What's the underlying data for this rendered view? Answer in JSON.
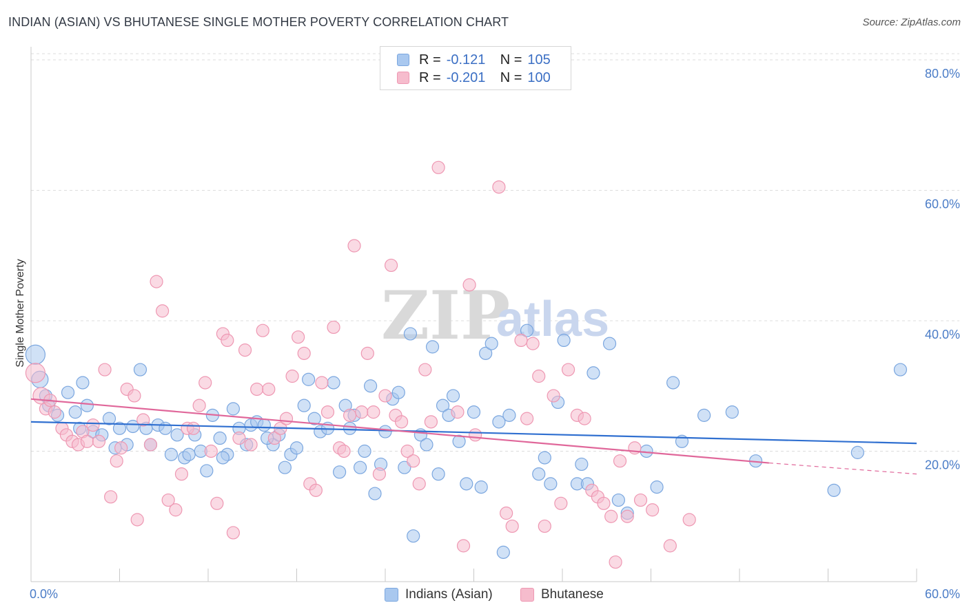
{
  "title": "INDIAN (ASIAN) VS BHUTANESE SINGLE MOTHER POVERTY CORRELATION CHART",
  "source": "Source: ZipAtlas.com",
  "watermark": {
    "zip": "ZIP",
    "atlas": "atlas"
  },
  "colors": {
    "blue_fill": "#a9c8ef",
    "blue_stroke": "#7aa6df",
    "blue_line": "#2f6fd0",
    "pink_fill": "#f6bccd",
    "pink_stroke": "#ee97b2",
    "pink_line": "#e0679a",
    "tick_text": "#4a7cc7",
    "grid": "#dcdcdc"
  },
  "legend_top": {
    "rows": [
      {
        "r_label": "R =",
        "r_value": "-0.121",
        "n_label": "N =",
        "n_value": "105"
      },
      {
        "r_label": "R =",
        "r_value": "-0.201",
        "n_label": "N =",
        "n_value": "100"
      }
    ]
  },
  "legend_bottom": {
    "series1": "Indians (Asian)",
    "series2": "Bhutanese"
  },
  "chart_data": {
    "type": "scatter",
    "title": "INDIAN (ASIAN) VS BHUTANESE SINGLE MOTHER POVERTY CORRELATION CHART",
    "xlabel": "",
    "ylabel": "Single Mother Poverty",
    "xlim": [
      0,
      60
    ],
    "ylim": [
      0,
      82
    ],
    "x_tick_labels": [
      {
        "value": 0,
        "label": "0.0%"
      },
      {
        "value": 60,
        "label": "60.0%"
      }
    ],
    "y_tick_labels": [
      {
        "value": 20,
        "label": "20.0%"
      },
      {
        "value": 40,
        "label": "40.0%"
      },
      {
        "value": 60,
        "label": "60.0%"
      },
      {
        "value": 80,
        "label": "80.0%"
      }
    ],
    "series": [
      {
        "name": "Indians (Asian)",
        "R": -0.121,
        "N": 105,
        "trend": {
          "x0": 0,
          "y0": 24.5,
          "x1": 60,
          "y1": 21.2
        },
        "points": [
          [
            0.3,
            34.8
          ],
          [
            0.6,
            31
          ],
          [
            1,
            28.5
          ],
          [
            1.2,
            27
          ],
          [
            1.8,
            25.5
          ],
          [
            2.5,
            29
          ],
          [
            3,
            26
          ],
          [
            3.3,
            23.5
          ],
          [
            3.8,
            27
          ],
          [
            4.2,
            23
          ],
          [
            4.8,
            22.5
          ],
          [
            5.3,
            25
          ],
          [
            5.7,
            20.5
          ],
          [
            6,
            23.5
          ],
          [
            6.5,
            21
          ],
          [
            6.9,
            23.8
          ],
          [
            7.4,
            32.5
          ],
          [
            7.8,
            23.5
          ],
          [
            8.1,
            21
          ],
          [
            8.6,
            24
          ],
          [
            9.1,
            23.5
          ],
          [
            9.5,
            19.5
          ],
          [
            9.9,
            22.5
          ],
          [
            10.4,
            19
          ],
          [
            10.7,
            19.5
          ],
          [
            11.1,
            22.5
          ],
          [
            11.5,
            20
          ],
          [
            11.9,
            17
          ],
          [
            12.3,
            25.5
          ],
          [
            12.8,
            22
          ],
          [
            13.3,
            19.5
          ],
          [
            13.7,
            26.5
          ],
          [
            14.1,
            23.5
          ],
          [
            14.6,
            21
          ],
          [
            14.9,
            24
          ],
          [
            15.3,
            24.5
          ],
          [
            15.8,
            24
          ],
          [
            16.4,
            21
          ],
          [
            16.8,
            22.5
          ],
          [
            17.2,
            17.5
          ],
          [
            17.6,
            19.5
          ],
          [
            18,
            20.5
          ],
          [
            18.5,
            27
          ],
          [
            18.8,
            31
          ],
          [
            19.2,
            25
          ],
          [
            19.6,
            23
          ],
          [
            20.1,
            23.5
          ],
          [
            20.5,
            30.5
          ],
          [
            20.9,
            16.8
          ],
          [
            21.3,
            27
          ],
          [
            21.6,
            23.5
          ],
          [
            21.9,
            25.5
          ],
          [
            22.3,
            17.5
          ],
          [
            22.6,
            20
          ],
          [
            23,
            30
          ],
          [
            23.3,
            13.5
          ],
          [
            23.7,
            18
          ],
          [
            24,
            23
          ],
          [
            24.5,
            28
          ],
          [
            24.9,
            29
          ],
          [
            25.3,
            17.5
          ],
          [
            25.7,
            38
          ],
          [
            25.9,
            7
          ],
          [
            26.4,
            22.5
          ],
          [
            26.8,
            21
          ],
          [
            27.2,
            36
          ],
          [
            27.6,
            16.5
          ],
          [
            27.9,
            27
          ],
          [
            28.3,
            25.5
          ],
          [
            28.6,
            28.5
          ],
          [
            29,
            21.5
          ],
          [
            29.5,
            15
          ],
          [
            30,
            26
          ],
          [
            30.5,
            14.5
          ],
          [
            30.8,
            35
          ],
          [
            31.2,
            36.5
          ],
          [
            31.7,
            24.5
          ],
          [
            32,
            4.5
          ],
          [
            32.4,
            25.5
          ],
          [
            33.6,
            38.5
          ],
          [
            34.4,
            16.5
          ],
          [
            34.8,
            19
          ],
          [
            35.2,
            15
          ],
          [
            35.7,
            27.5
          ],
          [
            36.1,
            37
          ],
          [
            37,
            15
          ],
          [
            37.3,
            18
          ],
          [
            37.7,
            15
          ],
          [
            38.1,
            32
          ],
          [
            39.2,
            36.5
          ],
          [
            39.8,
            12.5
          ],
          [
            40.4,
            10.5
          ],
          [
            41.7,
            20
          ],
          [
            42.4,
            14.5
          ],
          [
            43.5,
            30.5
          ],
          [
            44.1,
            21.5
          ],
          [
            45.6,
            25.5
          ],
          [
            47.5,
            26
          ],
          [
            49.1,
            18.5
          ],
          [
            54.4,
            14
          ],
          [
            56,
            19.8
          ],
          [
            58.9,
            32.5
          ],
          [
            3.5,
            30.5
          ],
          [
            13,
            19
          ],
          [
            16,
            22
          ]
        ]
      },
      {
        "name": "Bhutanese",
        "R": -0.201,
        "N": 100,
        "trend": {
          "x0": 0,
          "y0": 28,
          "x1": 50,
          "y1": 18.2
        },
        "trend_dashed": {
          "x0": 50,
          "y0": 18.2,
          "x1": 60,
          "y1": 16.5
        },
        "points": [
          [
            0.3,
            32
          ],
          [
            0.7,
            28.5
          ],
          [
            1,
            26.5
          ],
          [
            1.3,
            27.8
          ],
          [
            1.6,
            26
          ],
          [
            2.1,
            23.5
          ],
          [
            2.4,
            22.5
          ],
          [
            2.8,
            21.5
          ],
          [
            3.2,
            21
          ],
          [
            3.5,
            23
          ],
          [
            3.8,
            21.5
          ],
          [
            4.2,
            24
          ],
          [
            4.6,
            21.5
          ],
          [
            5,
            32.5
          ],
          [
            5.4,
            13
          ],
          [
            5.8,
            18.5
          ],
          [
            6.1,
            20.5
          ],
          [
            6.5,
            29.5
          ],
          [
            7,
            28.5
          ],
          [
            7.2,
            9.5
          ],
          [
            7.6,
            24.8
          ],
          [
            8.1,
            21
          ],
          [
            8.5,
            46
          ],
          [
            8.9,
            41.5
          ],
          [
            9.3,
            12.5
          ],
          [
            9.8,
            11
          ],
          [
            10.2,
            16.5
          ],
          [
            10.6,
            23.5
          ],
          [
            11,
            23.5
          ],
          [
            11.4,
            27
          ],
          [
            11.8,
            30.5
          ],
          [
            12.2,
            20
          ],
          [
            12.6,
            12
          ],
          [
            13,
            38
          ],
          [
            13.3,
            37
          ],
          [
            13.7,
            7.5
          ],
          [
            14.1,
            22
          ],
          [
            14.5,
            35.5
          ],
          [
            14.9,
            21
          ],
          [
            15.3,
            29.5
          ],
          [
            15.7,
            38.5
          ],
          [
            16.1,
            29.5
          ],
          [
            16.5,
            22
          ],
          [
            16.9,
            23.5
          ],
          [
            17.3,
            25
          ],
          [
            17.7,
            31.5
          ],
          [
            18.1,
            37.5
          ],
          [
            18.5,
            35
          ],
          [
            18.9,
            15
          ],
          [
            19.3,
            14
          ],
          [
            19.7,
            30.5
          ],
          [
            20.1,
            26
          ],
          [
            20.5,
            39
          ],
          [
            20.9,
            20.5
          ],
          [
            21.2,
            20
          ],
          [
            21.6,
            25.5
          ],
          [
            21.9,
            51.5
          ],
          [
            22.4,
            26
          ],
          [
            22.8,
            35
          ],
          [
            23.2,
            26
          ],
          [
            23.6,
            16.5
          ],
          [
            24,
            28.5
          ],
          [
            24.4,
            48.5
          ],
          [
            24.7,
            25.5
          ],
          [
            25.1,
            24.5
          ],
          [
            25.5,
            20
          ],
          [
            25.9,
            18.5
          ],
          [
            26.3,
            15
          ],
          [
            26.7,
            32.5
          ],
          [
            27.1,
            24.5
          ],
          [
            27.6,
            63.5
          ],
          [
            28.9,
            26
          ],
          [
            29.3,
            5.5
          ],
          [
            29.7,
            45.5
          ],
          [
            30.1,
            22.5
          ],
          [
            31.7,
            60.5
          ],
          [
            32.2,
            10.5
          ],
          [
            32.6,
            8.5
          ],
          [
            33.2,
            37
          ],
          [
            33.6,
            25
          ],
          [
            34,
            36.5
          ],
          [
            34.4,
            31.5
          ],
          [
            34.8,
            8.5
          ],
          [
            35.4,
            28.5
          ],
          [
            35.9,
            12
          ],
          [
            36.4,
            32.5
          ],
          [
            37,
            25.5
          ],
          [
            37.5,
            25
          ],
          [
            38,
            14
          ],
          [
            38.4,
            13
          ],
          [
            38.8,
            12
          ],
          [
            39.3,
            10
          ],
          [
            39.6,
            3
          ],
          [
            39.9,
            18.5
          ],
          [
            40.4,
            10
          ],
          [
            40.9,
            20.5
          ],
          [
            41.3,
            12.5
          ],
          [
            42.1,
            11
          ],
          [
            43.3,
            5.5
          ],
          [
            44.6,
            9.5
          ]
        ]
      }
    ]
  }
}
